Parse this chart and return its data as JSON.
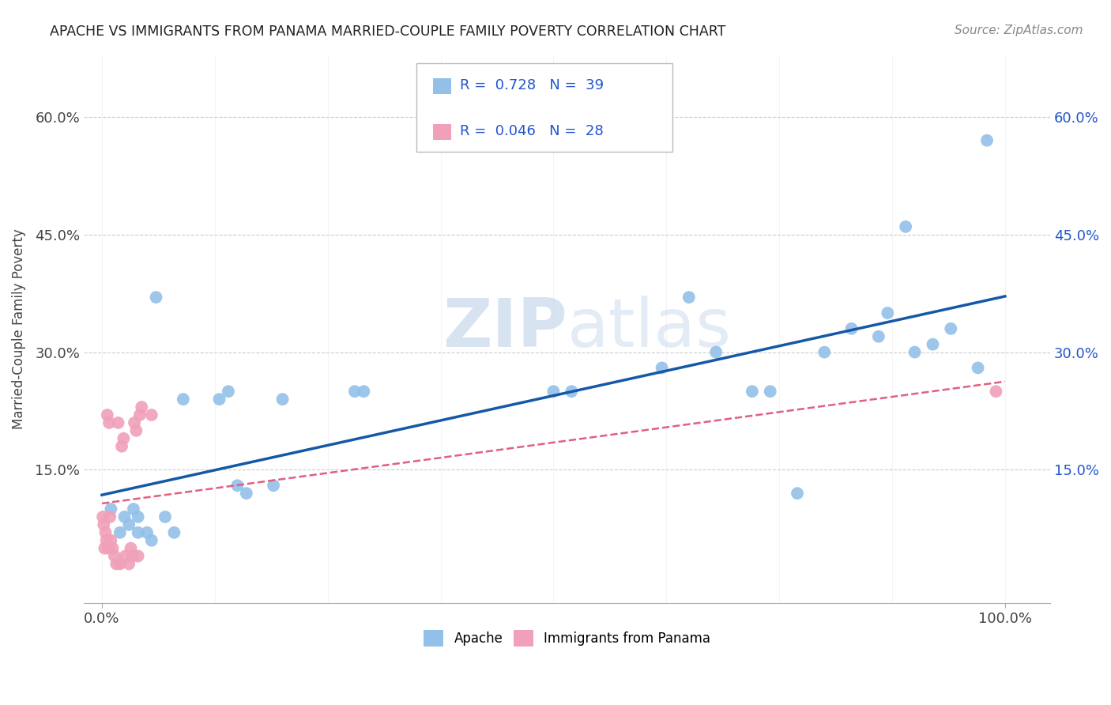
{
  "title": "APACHE VS IMMIGRANTS FROM PANAMA MARRIED-COUPLE FAMILY POVERTY CORRELATION CHART",
  "source": "Source: ZipAtlas.com",
  "ylabel": "Married-Couple Family Poverty",
  "xlim": [
    -0.02,
    1.05
  ],
  "ylim": [
    -0.02,
    0.68
  ],
  "x_ticks": [
    0.0,
    1.0
  ],
  "x_tick_labels": [
    "0.0%",
    "100.0%"
  ],
  "y_tick_values": [
    0.15,
    0.3,
    0.45,
    0.6
  ],
  "y_tick_labels": [
    "15.0%",
    "30.0%",
    "45.0%",
    "60.0%"
  ],
  "apache_R": 0.728,
  "apache_N": 39,
  "panama_R": 0.046,
  "panama_N": 28,
  "apache_color": "#92C0E8",
  "panama_color": "#F0A0B8",
  "apache_line_color": "#1558A8",
  "panama_line_color": "#E06080",
  "background_color": "#FFFFFF",
  "grid_color": "#CCCCCC",
  "legend_label_color": "#2255CC",
  "watermark_color": "#C8D8EC",
  "apache_x": [
    0.01,
    0.02,
    0.025,
    0.03,
    0.035,
    0.04,
    0.04,
    0.05,
    0.055,
    0.06,
    0.07,
    0.08,
    0.09,
    0.13,
    0.14,
    0.15,
    0.16,
    0.19,
    0.2,
    0.28,
    0.29,
    0.5,
    0.52,
    0.62,
    0.65,
    0.68,
    0.72,
    0.74,
    0.77,
    0.8,
    0.83,
    0.86,
    0.87,
    0.89,
    0.9,
    0.92,
    0.94,
    0.97,
    0.98
  ],
  "apache_y": [
    0.1,
    0.07,
    0.09,
    0.08,
    0.1,
    0.07,
    0.09,
    0.07,
    0.06,
    0.37,
    0.09,
    0.07,
    0.24,
    0.24,
    0.25,
    0.13,
    0.12,
    0.13,
    0.24,
    0.25,
    0.25,
    0.25,
    0.25,
    0.28,
    0.37,
    0.3,
    0.25,
    0.25,
    0.12,
    0.3,
    0.33,
    0.32,
    0.35,
    0.46,
    0.3,
    0.31,
    0.33,
    0.28,
    0.57
  ],
  "panama_x": [
    0.001,
    0.002,
    0.003,
    0.004,
    0.005,
    0.006,
    0.007,
    0.008,
    0.009,
    0.01,
    0.012,
    0.014,
    0.016,
    0.018,
    0.02,
    0.022,
    0.024,
    0.026,
    0.03,
    0.032,
    0.034,
    0.036,
    0.038,
    0.04,
    0.042,
    0.044,
    0.055,
    0.99
  ],
  "panama_y": [
    0.09,
    0.08,
    0.05,
    0.07,
    0.06,
    0.22,
    0.05,
    0.21,
    0.09,
    0.06,
    0.05,
    0.04,
    0.03,
    0.21,
    0.03,
    0.18,
    0.19,
    0.04,
    0.03,
    0.05,
    0.04,
    0.21,
    0.2,
    0.04,
    0.22,
    0.23,
    0.22,
    0.25
  ]
}
